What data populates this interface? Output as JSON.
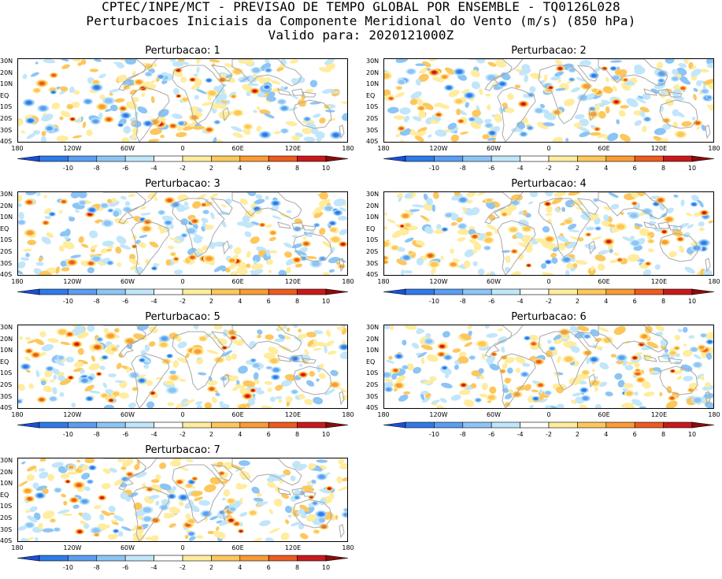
{
  "header": {
    "line1": "CPTEC/INPE/MCT - PREVISAO DE TEMPO GLOBAL POR ENSEMBLE - TQ0126L028",
    "line2": "Perturbacoes Iniciais da Componente Meridional do Vento (m/s) (850 hPa)",
    "line3": "Valido para: 2020121000Z"
  },
  "panels": [
    {
      "title": "Perturbacao: 1"
    },
    {
      "title": "Perturbacao: 2"
    },
    {
      "title": "Perturbacao: 3"
    },
    {
      "title": "Perturbacao: 4"
    },
    {
      "title": "Perturbacao: 5"
    },
    {
      "title": "Perturbacao: 6"
    },
    {
      "title": "Perturbacao: 7"
    }
  ],
  "lat_labels": [
    "30N",
    "20N",
    "10N",
    "EQ",
    "10S",
    "20S",
    "30S",
    "40S"
  ],
  "lon_labels": [
    "180",
    "120W",
    "60W",
    "0",
    "60E",
    "120E",
    "180"
  ],
  "colorbar": {
    "ticks": [
      "-10",
      "-8",
      "-6",
      "-4",
      "-2",
      "2",
      "4",
      "6",
      "8",
      "10"
    ],
    "colors": [
      "#1a4fd6",
      "#2e7ae8",
      "#5a9ef0",
      "#8cc4f5",
      "#c1e6fa",
      "#ffffff",
      "#ffec9e",
      "#fdc75c",
      "#f99b35",
      "#ec5b1f",
      "#c8191c",
      "#8c0b0b"
    ]
  },
  "styles": {
    "coastline_color": "#a8a8a8",
    "frame_color": "#000000",
    "background": "#ffffff"
  }
}
